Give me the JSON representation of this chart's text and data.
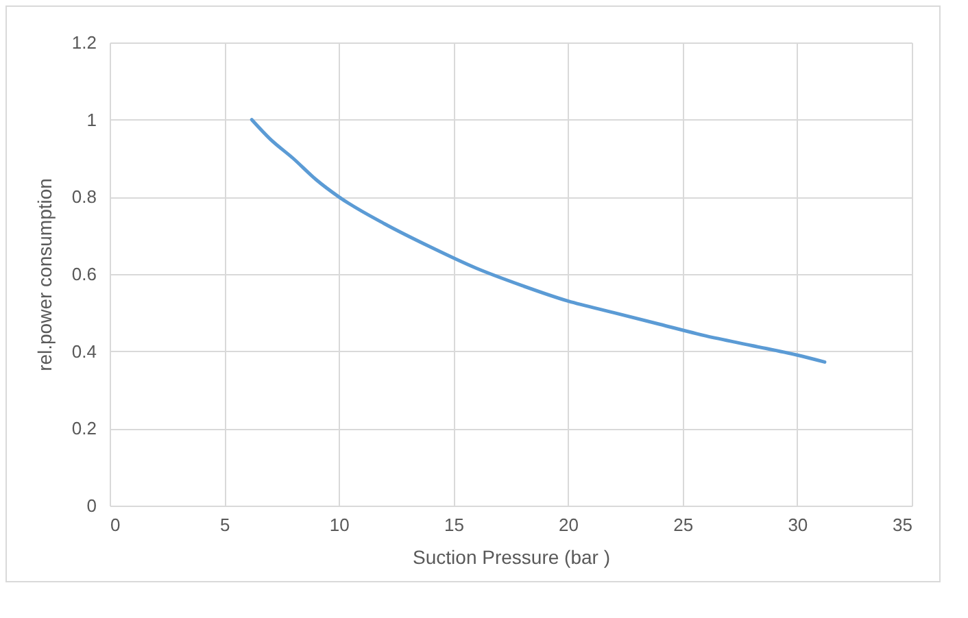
{
  "chart_data": {
    "type": "line",
    "xlabel": "Suction Pressure (bar )",
    "ylabel": "rel.power consumption",
    "x": [
      6.2,
      7,
      8,
      9,
      10,
      12,
      14,
      16,
      18,
      20,
      22,
      24,
      26,
      28,
      30,
      31.2
    ],
    "series": [
      {
        "color": "#5b9bd5",
        "values": [
          1.0,
          0.95,
          0.9,
          0.845,
          0.8,
          0.73,
          0.67,
          0.615,
          0.57,
          0.53,
          0.5,
          0.47,
          0.44,
          0.415,
          0.39,
          0.372
        ]
      }
    ],
    "xlim": [
      0,
      35
    ],
    "xticks": [
      0,
      5,
      10,
      15,
      20,
      25,
      30,
      35
    ],
    "ylim": [
      0,
      1.2
    ],
    "yticks": [
      0,
      0.2,
      0.4,
      0.6,
      0.8,
      1,
      1.2
    ],
    "grid": true,
    "marker": "none",
    "line_style": "solid"
  }
}
